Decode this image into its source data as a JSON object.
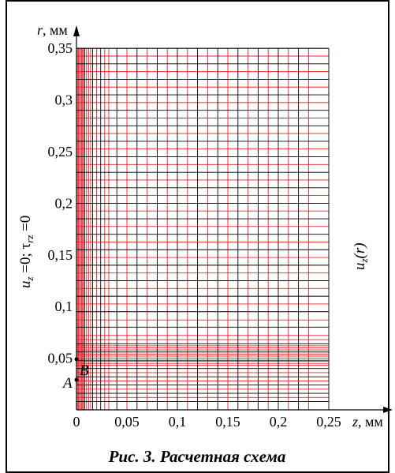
{
  "figure": {
    "caption": "Рис. 3. Расчетная схема",
    "x_axis": {
      "var": "z",
      "unit": ", мм",
      "tick_labels": [
        "0",
        "0,05",
        "0,1",
        "0,15",
        "0,2",
        "0,25"
      ]
    },
    "y_axis": {
      "var": "r",
      "unit": ", мм",
      "tick_labels": [
        "0,05",
        "0,1",
        "0,15",
        "0,2",
        "0,25",
        "0,3",
        "0,35"
      ]
    },
    "left_boundary": {
      "u": "u",
      "sub_z": "z",
      "eq0": " =0; ",
      "tau": "τ",
      "sub_rz": "rz",
      "eq0b": " =0"
    },
    "right_boundary": {
      "u": "u",
      "sub_z": "z",
      "arg": "(r)"
    },
    "points": {
      "A": "A",
      "B": "B"
    }
  },
  "mesh": {
    "z_black": [
      0,
      0.008,
      0.016,
      0.024,
      0.04,
      0.06,
      0.08,
      0.1,
      0.12,
      0.14,
      0.16,
      0.18,
      0.2,
      0.22
    ],
    "z_red": [
      0.001,
      0.002,
      0.003,
      0.004,
      0.005,
      0.006,
      0.007,
      0.01,
      0.012,
      0.014,
      0.02,
      0.028,
      0.032,
      0.05,
      0.07,
      0.09,
      0.11,
      0.13,
      0.15,
      0.17,
      0.19,
      0.21,
      0.23
    ],
    "r_black": [
      0.008,
      0.016,
      0.024,
      0.032,
      0.04,
      0.048,
      0.056,
      0.064,
      0.08,
      0.095,
      0.11,
      0.125,
      0.14,
      0.155,
      0.17,
      0.185,
      0.2,
      0.215,
      0.23,
      0.245,
      0.26,
      0.275,
      0.29,
      0.305,
      0.32,
      0.335,
      0.35
    ],
    "r_red": [
      0.012,
      0.02,
      0.028,
      0.036,
      0.043,
      0.045,
      0.047,
      0.05,
      0.052,
      0.054,
      0.058,
      0.06,
      0.062,
      0.068,
      0.072,
      0.087,
      0.1025,
      0.1175,
      0.1325,
      0.1475,
      0.1625,
      0.1775,
      0.1925,
      0.2075,
      0.2225,
      0.2375,
      0.2525,
      0.2675,
      0.2825,
      0.2975,
      0.3125,
      0.3275,
      0.3425
    ],
    "point_A_r": 0.029,
    "point_B_r": 0.049
  }
}
